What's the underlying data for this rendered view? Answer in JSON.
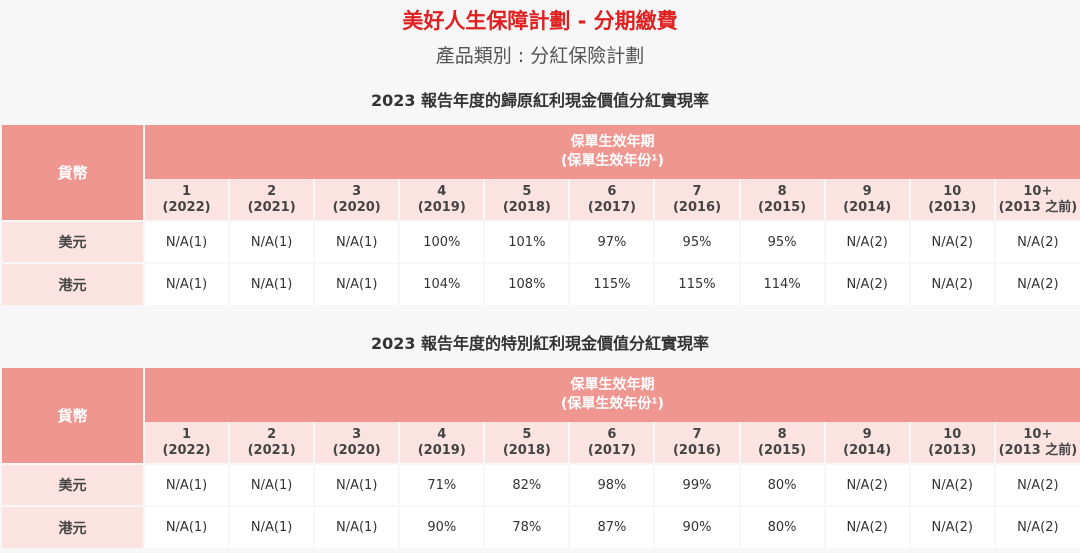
{
  "header": {
    "title": "美好人生保障計劃 - 分期繳費",
    "subtitle": "產品類別 : 分紅保險計劃"
  },
  "columns": {
    "currency_label": "貨幣",
    "period_line1": "保單生效年期",
    "period_line2": "(保單生效年份¹)",
    "years": [
      {
        "num": "1",
        "year": "(2022)"
      },
      {
        "num": "2",
        "year": "(2021)"
      },
      {
        "num": "3",
        "year": "(2020)"
      },
      {
        "num": "4",
        "year": "(2019)"
      },
      {
        "num": "5",
        "year": "(2018)"
      },
      {
        "num": "6",
        "year": "(2017)"
      },
      {
        "num": "7",
        "year": "(2016)"
      },
      {
        "num": "8",
        "year": "(2015)"
      },
      {
        "num": "9",
        "year": "(2014)"
      },
      {
        "num": "10",
        "year": "(2013)"
      },
      {
        "num": "10+",
        "year": "(2013 之前)"
      }
    ]
  },
  "tables": [
    {
      "heading": "2023 報告年度的歸原紅利現金價值分紅實現率",
      "rows": [
        {
          "currency": "美元",
          "values": [
            "N/A(1)",
            "N/A(1)",
            "N/A(1)",
            "100%",
            "101%",
            "97%",
            "95%",
            "95%",
            "N/A(2)",
            "N/A(2)",
            "N/A(2)"
          ]
        },
        {
          "currency": "港元",
          "values": [
            "N/A(1)",
            "N/A(1)",
            "N/A(1)",
            "104%",
            "108%",
            "115%",
            "115%",
            "114%",
            "N/A(2)",
            "N/A(2)",
            "N/A(2)"
          ]
        }
      ]
    },
    {
      "heading": "2023 報告年度的特別紅利現金價值分紅實現率",
      "rows": [
        {
          "currency": "美元",
          "values": [
            "N/A(1)",
            "N/A(1)",
            "N/A(1)",
            "71%",
            "82%",
            "98%",
            "99%",
            "80%",
            "N/A(2)",
            "N/A(2)",
            "N/A(2)"
          ]
        },
        {
          "currency": "港元",
          "values": [
            "N/A(1)",
            "N/A(1)",
            "N/A(1)",
            "90%",
            "78%",
            "87%",
            "90%",
            "80%",
            "N/A(2)",
            "N/A(2)",
            "N/A(2)"
          ]
        }
      ]
    }
  ],
  "colors": {
    "title": "#e02020",
    "header_band": "#f09691",
    "header_light": "#fbe3e1"
  }
}
